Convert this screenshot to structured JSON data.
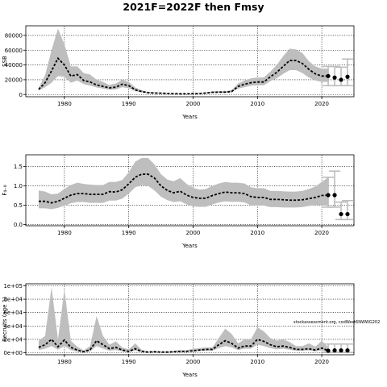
{
  "title": "2021F=2022F then Fmsy",
  "watermark": "stockassessment.org, codWest6NWWG202",
  "chart_data": [
    {
      "type": "area",
      "xlabel": "Years",
      "ylabel": "SSB",
      "xlim": [
        1974,
        2025
      ],
      "ylim": [
        -3000,
        93000
      ],
      "xticks": [
        1980,
        1990,
        2000,
        2010,
        2020
      ],
      "xtick_labels": [
        "1980",
        "1990",
        "2000",
        "2010",
        "2020"
      ],
      "yticks": [
        0,
        20000,
        40000,
        60000,
        80000
      ],
      "ytick_labels": [
        "0",
        "20000",
        "40000",
        "60000",
        "80000"
      ],
      "grid": true,
      "x": [
        1976,
        1977,
        1978,
        1979,
        1980,
        1981,
        1982,
        1983,
        1984,
        1985,
        1986,
        1987,
        1988,
        1989,
        1990,
        1991,
        1992,
        1993,
        1994,
        1995,
        1996,
        1997,
        1998,
        1999,
        2000,
        2001,
        2002,
        2003,
        2004,
        2005,
        2006,
        2007,
        2008,
        2009,
        2010,
        2011,
        2012,
        2013,
        2014,
        2015,
        2016,
        2017,
        2018,
        2019,
        2020,
        2021
      ],
      "median": [
        7000,
        16000,
        32000,
        49000,
        40000,
        25000,
        27000,
        19000,
        17000,
        13000,
        11000,
        9000,
        10000,
        14000,
        12000,
        6500,
        4000,
        2500,
        2000,
        1800,
        1500,
        1200,
        1000,
        1000,
        1200,
        1500,
        2000,
        3000,
        3200,
        3200,
        4000,
        11000,
        14000,
        16000,
        17000,
        17000,
        24000,
        30000,
        38000,
        46000,
        46000,
        42000,
        34000,
        28000,
        25000,
        25000
      ],
      "lower": [
        5500,
        10000,
        16000,
        25000,
        24000,
        16000,
        19000,
        14000,
        12000,
        9500,
        8000,
        6500,
        7000,
        10000,
        8500,
        4500,
        2800,
        1800,
        1500,
        1300,
        1000,
        900,
        700,
        700,
        900,
        1100,
        1500,
        2200,
        2500,
        2500,
        3000,
        8000,
        10000,
        12000,
        12500,
        12500,
        18000,
        22000,
        28000,
        33000,
        33000,
        29000,
        23000,
        19000,
        17000,
        17000
      ],
      "upper": [
        9000,
        26000,
        60000,
        89000,
        68000,
        38000,
        38000,
        29000,
        27000,
        20000,
        17000,
        13000,
        15000,
        20000,
        17000,
        9500,
        6000,
        3500,
        3000,
        2600,
        2200,
        1800,
        1500,
        1500,
        1700,
        2100,
        2800,
        4200,
        4500,
        4500,
        6000,
        15000,
        19000,
        22000,
        23000,
        23000,
        31000,
        40000,
        52000,
        62000,
        61000,
        56000,
        45000,
        38000,
        35000,
        35000
      ],
      "projection": {
        "x": [
          2021,
          2022,
          2023,
          2024
        ],
        "median": [
          25000,
          23000,
          20000,
          24000
        ],
        "lower": [
          12000,
          12000,
          12000,
          12000
        ],
        "upper": [
          38000,
          38000,
          37000,
          48000
        ]
      }
    },
    {
      "type": "area",
      "xlabel": "Years",
      "ylabel": "F₄₋₈",
      "xlim": [
        1974,
        2025
      ],
      "ylim": [
        -0.03,
        1.8
      ],
      "xticks": [
        1980,
        1990,
        2000,
        2010,
        2020
      ],
      "xtick_labels": [
        "1980",
        "1990",
        "2000",
        "2010",
        "2020"
      ],
      "yticks": [
        0,
        0.5,
        1.0,
        1.5
      ],
      "ytick_labels": [
        "0.0",
        "0.5",
        "1.0",
        "1.5"
      ],
      "grid": true,
      "x": [
        1976,
        1977,
        1978,
        1979,
        1980,
        1981,
        1982,
        1983,
        1984,
        1985,
        1986,
        1987,
        1988,
        1989,
        1990,
        1991,
        1992,
        1993,
        1994,
        1995,
        1996,
        1997,
        1998,
        1999,
        2000,
        2001,
        2002,
        2003,
        2004,
        2005,
        2006,
        2007,
        2008,
        2009,
        2010,
        2011,
        2012,
        2013,
        2014,
        2015,
        2016,
        2017,
        2018,
        2019,
        2020,
        2021
      ],
      "median": [
        0.6,
        0.6,
        0.56,
        0.6,
        0.68,
        0.76,
        0.8,
        0.8,
        0.78,
        0.78,
        0.78,
        0.85,
        0.84,
        0.9,
        1.05,
        1.22,
        1.3,
        1.3,
        1.2,
        1.0,
        0.88,
        0.82,
        0.86,
        0.76,
        0.7,
        0.68,
        0.68,
        0.75,
        0.8,
        0.84,
        0.82,
        0.82,
        0.8,
        0.72,
        0.7,
        0.7,
        0.65,
        0.65,
        0.64,
        0.63,
        0.63,
        0.64,
        0.67,
        0.7,
        0.75,
        0.76
      ],
      "lower": [
        0.42,
        0.42,
        0.4,
        0.43,
        0.49,
        0.55,
        0.58,
        0.58,
        0.56,
        0.56,
        0.56,
        0.62,
        0.62,
        0.67,
        0.8,
        0.96,
        1.02,
        1.0,
        0.88,
        0.72,
        0.63,
        0.58,
        0.6,
        0.52,
        0.47,
        0.46,
        0.46,
        0.52,
        0.57,
        0.6,
        0.59,
        0.59,
        0.57,
        0.5,
        0.49,
        0.49,
        0.45,
        0.45,
        0.44,
        0.44,
        0.44,
        0.45,
        0.48,
        0.5,
        0.5,
        0.48
      ],
      "upper": [
        0.88,
        0.85,
        0.78,
        0.8,
        0.92,
        1.02,
        1.08,
        1.05,
        1.03,
        1.02,
        1.02,
        1.1,
        1.1,
        1.15,
        1.35,
        1.62,
        1.72,
        1.72,
        1.55,
        1.3,
        1.16,
        1.12,
        1.2,
        1.05,
        0.95,
        0.9,
        0.92,
        1.0,
        1.06,
        1.1,
        1.08,
        1.08,
        1.06,
        0.96,
        0.94,
        0.94,
        0.87,
        0.87,
        0.86,
        0.85,
        0.85,
        0.87,
        0.92,
        0.98,
        1.1,
        1.22
      ],
      "projection": {
        "x": [
          2021,
          2022,
          2023,
          2024
        ],
        "median": [
          0.76,
          0.76,
          0.27,
          0.27
        ],
        "lower": [
          0.45,
          0.45,
          0.13,
          0.13
        ],
        "upper": [
          1.22,
          1.38,
          0.58,
          0.62
        ]
      }
    },
    {
      "type": "area",
      "xlabel": "Years",
      "ylabel": "Recruits (age 1)",
      "xlim": [
        1974,
        2025
      ],
      "ylim": [
        -3000,
        103000
      ],
      "xticks": [
        1980,
        1990,
        2000,
        2010,
        2020
      ],
      "xtick_labels": [
        "1980",
        "1990",
        "2000",
        "2010",
        "2020"
      ],
      "yticks": [
        0,
        20000,
        40000,
        60000,
        80000,
        100000
      ],
      "ytick_labels": [
        "0e+00",
        "2e+04",
        "4e+04",
        "6e+04",
        "8e+04",
        "1e+05"
      ],
      "grid": true,
      "x": [
        1976,
        1977,
        1978,
        1979,
        1980,
        1981,
        1982,
        1983,
        1984,
        1985,
        1986,
        1987,
        1988,
        1989,
        1990,
        1991,
        1992,
        1993,
        1994,
        1995,
        1996,
        1997,
        1998,
        1999,
        2000,
        2001,
        2002,
        2003,
        2004,
        2005,
        2006,
        2007,
        2008,
        2009,
        2010,
        2011,
        2012,
        2013,
        2014,
        2015,
        2016,
        2017,
        2018,
        2019,
        2020,
        2021
      ],
      "median": [
        8000,
        12000,
        20000,
        9000,
        19000,
        8000,
        4000,
        1500,
        4500,
        18000,
        12000,
        6000,
        8000,
        4000,
        2000,
        6000,
        2000,
        1000,
        1500,
        1000,
        1000,
        1500,
        2000,
        2000,
        3000,
        4000,
        5000,
        5000,
        12000,
        18000,
        14000,
        7000,
        10000,
        10000,
        20000,
        17000,
        12000,
        9000,
        10000,
        8000,
        5000,
        5000,
        6000,
        4000,
        7000,
        3000
      ],
      "lower": [
        4000,
        6000,
        10000,
        4500,
        10000,
        4000,
        1500,
        500,
        2000,
        10000,
        6000,
        3000,
        4000,
        2000,
        800,
        3000,
        800,
        400,
        600,
        400,
        400,
        700,
        1000,
        1000,
        1500,
        2500,
        3000,
        3000,
        7000,
        10000,
        8000,
        4000,
        6000,
        6000,
        12000,
        10000,
        7000,
        5000,
        6000,
        4500,
        3000,
        3000,
        3500,
        2000,
        3500,
        1000
      ],
      "upper": [
        18000,
        25000,
        98000,
        20000,
        95000,
        18000,
        9000,
        3500,
        10000,
        55000,
        25000,
        12000,
        17000,
        8000,
        5000,
        14000,
        4500,
        2000,
        3000,
        2000,
        2000,
        3000,
        4000,
        4000,
        6000,
        7000,
        8000,
        8000,
        22000,
        36000,
        28000,
        14000,
        20000,
        20000,
        38000,
        32000,
        22000,
        18000,
        20000,
        16000,
        10000,
        10000,
        14000,
        9000,
        18000,
        8000
      ],
      "projection": {
        "x": [
          2021,
          2022,
          2023,
          2024
        ],
        "median": [
          3000,
          3500,
          3500,
          3500
        ],
        "lower": [
          500,
          600,
          600,
          600
        ],
        "upper": [
          13000,
          13000,
          13000,
          13000
        ]
      }
    }
  ]
}
